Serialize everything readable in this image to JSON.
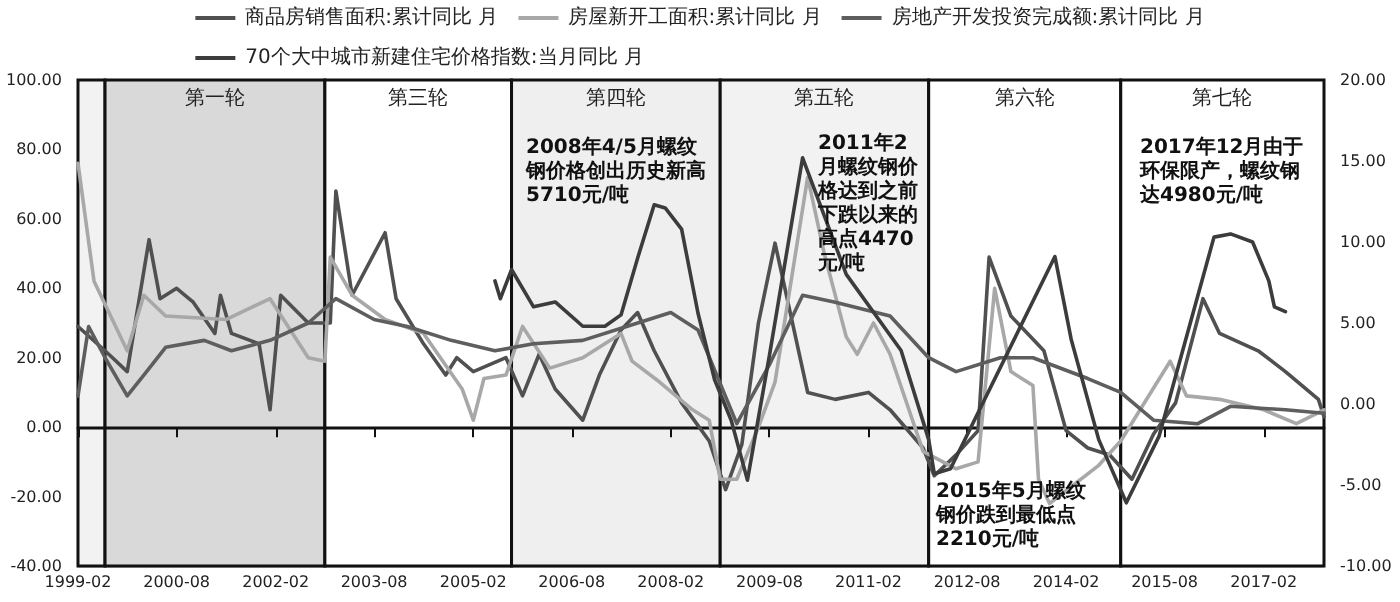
{
  "chart_data": {
    "type": "line",
    "legend": "top",
    "grid": "y",
    "marker": "none",
    "xlim": [
      "1999-02",
      "2018-01"
    ],
    "xticks": [
      "1999-02",
      "2000-08",
      "2002-02",
      "2003-08",
      "2005-02",
      "2006-08",
      "2008-02",
      "2009-08",
      "2011-02",
      "2012-08",
      "2014-02",
      "2015-08",
      "2017-02"
    ],
    "ylim": [
      -40,
      100
    ],
    "yticks": [
      {
        "value": -40,
        "label": "-40.00"
      },
      {
        "value": -20,
        "label": "-20.00"
      },
      {
        "value": 0,
        "label": "0.00"
      },
      {
        "value": 20,
        "label": "20.00"
      },
      {
        "value": 40,
        "label": "40.00"
      },
      {
        "value": 60,
        "label": "60.00"
      },
      {
        "value": 80,
        "label": "80.00"
      },
      {
        "value": 100,
        "label": "100.00"
      }
    ],
    "y2lim": [
      -10,
      20
    ],
    "y2ticks": [
      {
        "value": -10,
        "label": "-10.00"
      },
      {
        "value": -5,
        "label": "-5.00"
      },
      {
        "value": 0,
        "label": "0.00"
      },
      {
        "value": 5,
        "label": "5.00"
      },
      {
        "value": 10,
        "label": "10.00"
      },
      {
        "value": 15,
        "label": "15.00"
      },
      {
        "value": 20,
        "label": "20.00"
      }
    ],
    "bands": [
      {
        "axis": "x",
        "from": "1999-02",
        "to": "1999-07",
        "color": "#f2f2f2"
      },
      {
        "axis": "x",
        "from": "1999-07",
        "to": "2002-11",
        "label": "第一轮",
        "color": "#d9d9d9"
      },
      {
        "axis": "x",
        "from": "2002-11",
        "to": "2005-09",
        "label": "第三轮",
        "color": "#ffffff"
      },
      {
        "axis": "x",
        "from": "2005-09",
        "to": "2008-11",
        "label": "第四轮",
        "color": "#efefef"
      },
      {
        "axis": "x",
        "from": "2008-11",
        "to": "2012-01",
        "label": "第五轮",
        "color": "#f2f2f2"
      },
      {
        "axis": "x",
        "from": "2012-01",
        "to": "2014-12",
        "label": "第六轮",
        "color": "#ffffff"
      },
      {
        "axis": "x",
        "from": "2014-12",
        "to": "2018-01",
        "label": "第七轮",
        "color": "#ffffff"
      }
    ],
    "annotations": [
      "2008年4/5月螺纹钢价格创出历史新高5710元/吨",
      "2011年2月螺纹钢价格达到之前下跌以来的高点4470元/吨",
      "2015年5月螺纹钢价跌到最低点2210元/吨",
      "2017年12月由于环保限产，螺纹钢达4980元/吨"
    ],
    "series": [
      {
        "name": "商品房销售面积:累计同比 月",
        "color": "#505050",
        "x": [
          "1999-02",
          "1999-07",
          "1999-11",
          "2000-03",
          "2000-05",
          "2000-08",
          "2000-11",
          "2001-03",
          "2001-04",
          "2001-06",
          "2001-11",
          "2002-01",
          "2002-03",
          "2002-08",
          "2002-12",
          "2003-01",
          "2003-04",
          "2003-10",
          "2003-12",
          "2004-05",
          "2004-09",
          "2004-11",
          "2005-02",
          "2005-08",
          "2005-11",
          "2006-02",
          "2006-05",
          "2006-10",
          "2007-01",
          "2007-05",
          "2007-08",
          "2007-11",
          "2008-04",
          "2008-09",
          "2008-12",
          "2009-03",
          "2009-06",
          "2009-09",
          "2010-03",
          "2010-08",
          "2011-02",
          "2011-06",
          "2011-12",
          "2012-02",
          "2012-06",
          "2012-10",
          "2012-12",
          "2013-04",
          "2013-10",
          "2014-02",
          "2014-06",
          "2014-10",
          "2015-02",
          "2015-06",
          "2015-10",
          "2016-03",
          "2016-06",
          "2017-01",
          "2017-06",
          "2017-12",
          "2018-01"
        ],
        "values": [
          29,
          22,
          16,
          54,
          37,
          40,
          36,
          27,
          38,
          27,
          24,
          5,
          38,
          30,
          30,
          68,
          38,
          56,
          37,
          24,
          15,
          20,
          16,
          20,
          9,
          21,
          11,
          2,
          15,
          28,
          33,
          22,
          7,
          -4,
          -18,
          -5,
          30,
          53,
          10,
          8,
          10,
          5,
          -6,
          -14,
          -8,
          -1,
          49,
          32,
          22,
          -1,
          -6,
          -8,
          -15,
          -2,
          7,
          37,
          27,
          22,
          16,
          8,
          3
        ]
      },
      {
        "name": "房屋新开工面积:累计同比 月",
        "color": "#a8a8a8",
        "x": [
          "1999-02",
          "1999-05",
          "1999-11",
          "2000-02",
          "2000-06",
          "2001-05",
          "2002-01",
          "2002-08",
          "2002-11",
          "2002-12",
          "2003-04",
          "2003-10",
          "2004-05",
          "2004-12",
          "2005-02",
          "2005-04",
          "2005-08",
          "2005-11",
          "2006-04",
          "2006-10",
          "2007-05",
          "2007-07",
          "2007-12",
          "2008-06",
          "2008-09",
          "2008-11",
          "2009-02",
          "2009-06",
          "2009-09",
          "2010-03",
          "2010-06",
          "2010-10",
          "2010-12",
          "2011-03",
          "2011-06",
          "2011-12",
          "2012-06",
          "2012-10",
          "2013-01",
          "2013-04",
          "2013-08",
          "2013-09",
          "2013-11",
          "2014-08",
          "2014-12",
          "2015-09",
          "2015-12",
          "2016-06",
          "2017-02",
          "2017-08",
          "2018-01"
        ],
        "values": [
          76,
          42,
          22,
          38,
          32,
          31,
          37,
          20,
          19,
          49,
          38,
          31,
          27,
          11,
          2,
          14,
          15,
          29,
          17,
          20,
          27,
          19,
          13,
          5,
          2,
          -15,
          -15,
          0,
          13,
          72,
          50,
          26,
          21,
          30,
          21,
          -7,
          -12,
          -10,
          40,
          16,
          12,
          -15,
          -22,
          -11,
          -4,
          19,
          9,
          8,
          5,
          1,
          5
        ]
      },
      {
        "name": "房地产开发投资完成额:累计同比 月",
        "color": "#5e5e5e",
        "x": [
          "1999-02",
          "1999-04",
          "1999-07",
          "1999-11",
          "2000-02",
          "2000-06",
          "2001-01",
          "2001-06",
          "2002-01",
          "2002-08",
          "2003-01",
          "2003-08",
          "2004-02",
          "2004-10",
          "2005-06",
          "2006-01",
          "2006-10",
          "2007-06",
          "2008-02",
          "2008-07",
          "2009-02",
          "2009-08",
          "2010-02",
          "2010-08",
          "2011-06",
          "2012-01",
          "2012-06",
          "2013-02",
          "2013-08",
          "2014-06",
          "2014-12",
          "2015-06",
          "2016-02",
          "2016-08",
          "2017-06",
          "2018-01"
        ],
        "values": [
          9,
          29,
          20,
          9,
          15,
          23,
          25,
          22,
          25,
          30,
          37,
          31,
          29,
          25,
          22,
          24,
          25,
          29,
          33,
          28,
          1,
          18,
          38,
          36,
          32,
          20,
          16,
          20,
          20,
          14,
          10,
          2,
          1,
          6,
          5,
          4
        ]
      },
      {
        "name": "70个大中城市新建住宅价格指数:当月同比 月",
        "color": "#3c3c3c",
        "axis": "y2",
        "x": [
          "2005-06",
          "2005-07",
          "2005-09",
          "2006-01",
          "2006-05",
          "2006-10",
          "2007-02",
          "2007-05",
          "2007-08",
          "2007-11",
          "2008-01",
          "2008-04",
          "2008-07",
          "2008-10",
          "2009-01",
          "2009-04",
          "2009-08",
          "2010-02",
          "2010-10",
          "2011-08",
          "2012-01",
          "2012-02",
          "2012-05",
          "2013-12",
          "2014-03",
          "2014-08",
          "2015-01",
          "2015-07",
          "2016-05",
          "2016-08",
          "2016-12",
          "2017-03",
          "2017-04",
          "2017-06"
        ],
        "values": [
          7.6,
          6.5,
          8.3,
          6,
          6.3,
          4.8,
          4.8,
          5.5,
          9,
          12.3,
          12.1,
          10.8,
          5.6,
          1.5,
          -1,
          -4.7,
          3,
          15.2,
          8,
          3.3,
          -2.2,
          -4.3,
          -4,
          9.1,
          4,
          -2.2,
          -6.1,
          -2,
          10.3,
          10.5,
          10,
          7.6,
          6,
          5.7
        ]
      }
    ]
  }
}
